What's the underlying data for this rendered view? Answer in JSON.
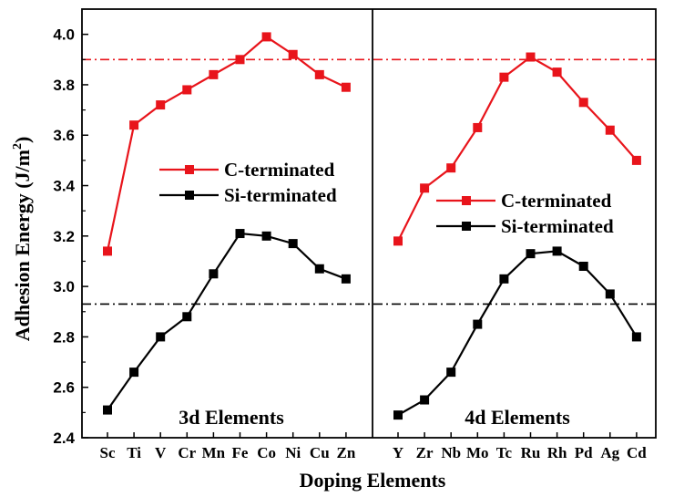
{
  "chart_data": {
    "type": "line",
    "ylabel": "Adhesion Energy (J/m",
    "ylabel_superscript": "2",
    "ylabel_close": ")",
    "xlabel": "Doping Elements",
    "ylim": [
      2.4,
      4.1
    ],
    "yticks": [
      "2.4",
      "2.6",
      "2.8",
      "3.0",
      "3.2",
      "3.4",
      "3.6",
      "3.8",
      "4.0"
    ],
    "colors": {
      "c_terminated": "#e8141b",
      "si_terminated": "#000000",
      "axis": "#000000"
    },
    "reference_lines": [
      {
        "y": 3.9,
        "color": "#e8141b",
        "style": "dash-dot"
      },
      {
        "y": 2.93,
        "color": "#000000",
        "style": "dash-dot"
      }
    ],
    "panels": [
      {
        "label": "3d Elements",
        "categories": [
          "Sc",
          "Ti",
          "V",
          "Cr",
          "Mn",
          "Fe",
          "Co",
          "Ni",
          "Cu",
          "Zn"
        ],
        "legend_position": "center-left",
        "series": [
          {
            "name": "C-terminated",
            "color": "#e8141b",
            "values": [
              3.14,
              3.64,
              3.72,
              3.78,
              3.84,
              3.9,
              3.99,
              3.92,
              3.84,
              3.79
            ]
          },
          {
            "name": "Si-terminated",
            "color": "#000000",
            "values": [
              2.51,
              2.66,
              2.8,
              2.88,
              3.05,
              3.21,
              3.2,
              3.17,
              3.07,
              3.03
            ]
          }
        ]
      },
      {
        "label": "4d Elements",
        "categories": [
          "Y",
          "Zr",
          "Nb",
          "Mo",
          "Tc",
          "Ru",
          "Rh",
          "Pd",
          "Ag",
          "Cd"
        ],
        "legend_position": "center",
        "series": [
          {
            "name": "C-terminated",
            "color": "#e8141b",
            "values": [
              3.18,
              3.39,
              3.47,
              3.63,
              3.83,
              3.91,
              3.85,
              3.73,
              3.62,
              3.5
            ]
          },
          {
            "name": "Si-terminated",
            "color": "#000000",
            "values": [
              2.49,
              2.55,
              2.66,
              2.85,
              3.03,
              3.13,
              3.14,
              3.08,
              2.97,
              2.8
            ]
          }
        ]
      }
    ]
  }
}
